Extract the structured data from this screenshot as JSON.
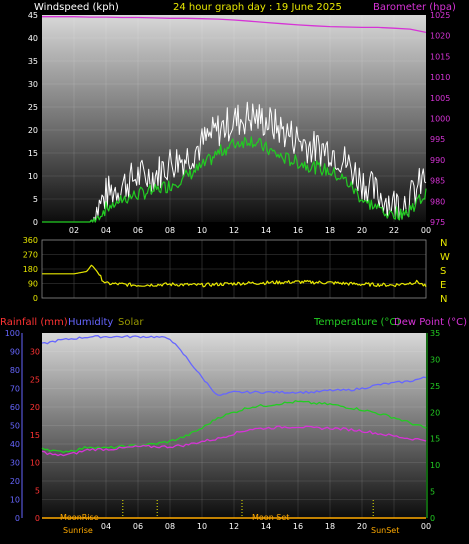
{
  "header": {
    "windspeed_label": "Windspeed (kph)",
    "title": "24 hour graph day : 19 June 2025",
    "barometer_label": "Barometer (hpa)"
  },
  "colors": {
    "gust": "#ffffff",
    "wind": "#22cc22",
    "barometer": "#d633d6",
    "direction": "#e8e800",
    "rain": "#ff3333",
    "humidity": "#6666ff",
    "solar": "#999900",
    "temperature": "#22cc22",
    "dewpoint": "#d633d6",
    "moon": "#ffaa00"
  },
  "x_ticks": [
    "02",
    "04",
    "06",
    "08",
    "10",
    "12",
    "14",
    "16",
    "18",
    "20",
    "22",
    "00"
  ],
  "chart_data": [
    {
      "type": "line",
      "name": "wind-barometer",
      "y_left_ticks": [
        "0",
        "5",
        "10",
        "15",
        "20",
        "25",
        "30",
        "35",
        "40",
        "45"
      ],
      "y_right_ticks": [
        "975",
        "980",
        "985",
        "990",
        "995",
        "1000",
        "1005",
        "1010",
        "1015",
        "1020",
        "1025"
      ],
      "ylim_left": [
        0,
        45
      ],
      "ylim_right": [
        975,
        1025
      ],
      "x_hours": [
        0,
        1,
        2,
        3,
        4,
        5,
        6,
        7,
        8,
        9,
        10,
        11,
        12,
        13,
        14,
        15,
        16,
        17,
        18,
        19,
        20,
        21,
        22,
        23,
        24
      ],
      "series": [
        {
          "key": "gust",
          "values": [
            0,
            0,
            0,
            0,
            6,
            8,
            10,
            10,
            13,
            14,
            17,
            20,
            22,
            23,
            22,
            20,
            18,
            16,
            16,
            13,
            9,
            6,
            4,
            5,
            10
          ]
        },
        {
          "key": "wind",
          "values": [
            0,
            0,
            0,
            0,
            3,
            5,
            6,
            7,
            8,
            10,
            12,
            15,
            17,
            18,
            16,
            14,
            13,
            12,
            11,
            9,
            5,
            3,
            2,
            3,
            6
          ]
        },
        {
          "key": "barometer",
          "axis": "right",
          "values": [
            1024.6,
            1024.6,
            1024.6,
            1024.5,
            1024.5,
            1024.4,
            1024.4,
            1024.3,
            1024.2,
            1024.2,
            1024.1,
            1024.0,
            1023.8,
            1023.5,
            1023.2,
            1022.9,
            1022.6,
            1022.4,
            1022.2,
            1022.1,
            1022.0,
            1022.0,
            1021.8,
            1021.6,
            1020.8
          ]
        }
      ]
    },
    {
      "type": "line",
      "name": "wind-direction",
      "y_left_ticks": [
        "0",
        "90",
        "180",
        "270",
        "360"
      ],
      "ylim": [
        0,
        360
      ],
      "compass": [
        "N",
        "W",
        "S",
        "E",
        "N"
      ],
      "x_hours": [
        0,
        2,
        2.8,
        3.1,
        3.4,
        3.8,
        4,
        6,
        8,
        10,
        12,
        14,
        16,
        18,
        20,
        22,
        23.5,
        24
      ],
      "series": [
        {
          "key": "direction",
          "values": [
            150,
            150,
            165,
            205,
            170,
            110,
            90,
            80,
            85,
            80,
            90,
            95,
            100,
            95,
            85,
            80,
            100,
            70
          ]
        }
      ]
    },
    {
      "type": "line",
      "name": "rain-humidity-temperature",
      "y_left_ticks": [
        "0",
        "10",
        "20",
        "30",
        "40",
        "50",
        "60",
        "70",
        "80",
        "90",
        "100"
      ],
      "y_rain_ticks": [
        "0",
        "5",
        "10",
        "15",
        "20",
        "25",
        "30"
      ],
      "y_right_ticks": [
        "0",
        "5",
        "10",
        "15",
        "20",
        "25",
        "30",
        "35"
      ],
      "ylim_left": [
        0,
        100
      ],
      "ylim_right": [
        0,
        35
      ],
      "x_hours": [
        0,
        1,
        2,
        3,
        4,
        5,
        6,
        7,
        8,
        9,
        10,
        11,
        12,
        13,
        14,
        15,
        16,
        17,
        18,
        19,
        20,
        21,
        22,
        23,
        24
      ],
      "series": [
        {
          "key": "humidity",
          "values": [
            94,
            96,
            97,
            98,
            98,
            98,
            98,
            98,
            97,
            87,
            76,
            66,
            68,
            68,
            68,
            68,
            68,
            68,
            69,
            69,
            70,
            72,
            73,
            74,
            76
          ]
        },
        {
          "key": "temperature",
          "axis": "right",
          "values": [
            13.3,
            12.5,
            12.8,
            13.5,
            13.2,
            13.5,
            13.7,
            14.0,
            14.5,
            15.5,
            17.0,
            19.0,
            20.0,
            21.0,
            21.3,
            21.7,
            22.0,
            21.7,
            21.5,
            21.0,
            20.5,
            19.8,
            19.0,
            18.0,
            17.0
          ]
        },
        {
          "key": "dewpoint",
          "axis": "right",
          "values": [
            12.5,
            11.8,
            12.2,
            13.0,
            13.0,
            13.2,
            13.5,
            13.5,
            13.5,
            13.8,
            14.5,
            15.0,
            16.0,
            16.8,
            17.0,
            17.2,
            17.3,
            17.0,
            17.0,
            16.8,
            16.5,
            16.0,
            15.5,
            15.0,
            14.8
          ]
        },
        {
          "key": "rain",
          "values": [
            0,
            0,
            0,
            0,
            0,
            0,
            0,
            0,
            0,
            0,
            0,
            0,
            0,
            0,
            0,
            0,
            0,
            0,
            0,
            0,
            0,
            0,
            0,
            0,
            0
          ]
        }
      ],
      "labels": {
        "rainfall": "Rainfall (mm)",
        "humidity": "Humidity",
        "solar": "Solar",
        "temperature": "Temperature (°C)",
        "dewpoint": "Dew Point (°C)",
        "moonrise": "MoonRise",
        "moonset": "Moon Set",
        "sunrise": "Sunrise",
        "sunset": "SunSet"
      }
    }
  ]
}
